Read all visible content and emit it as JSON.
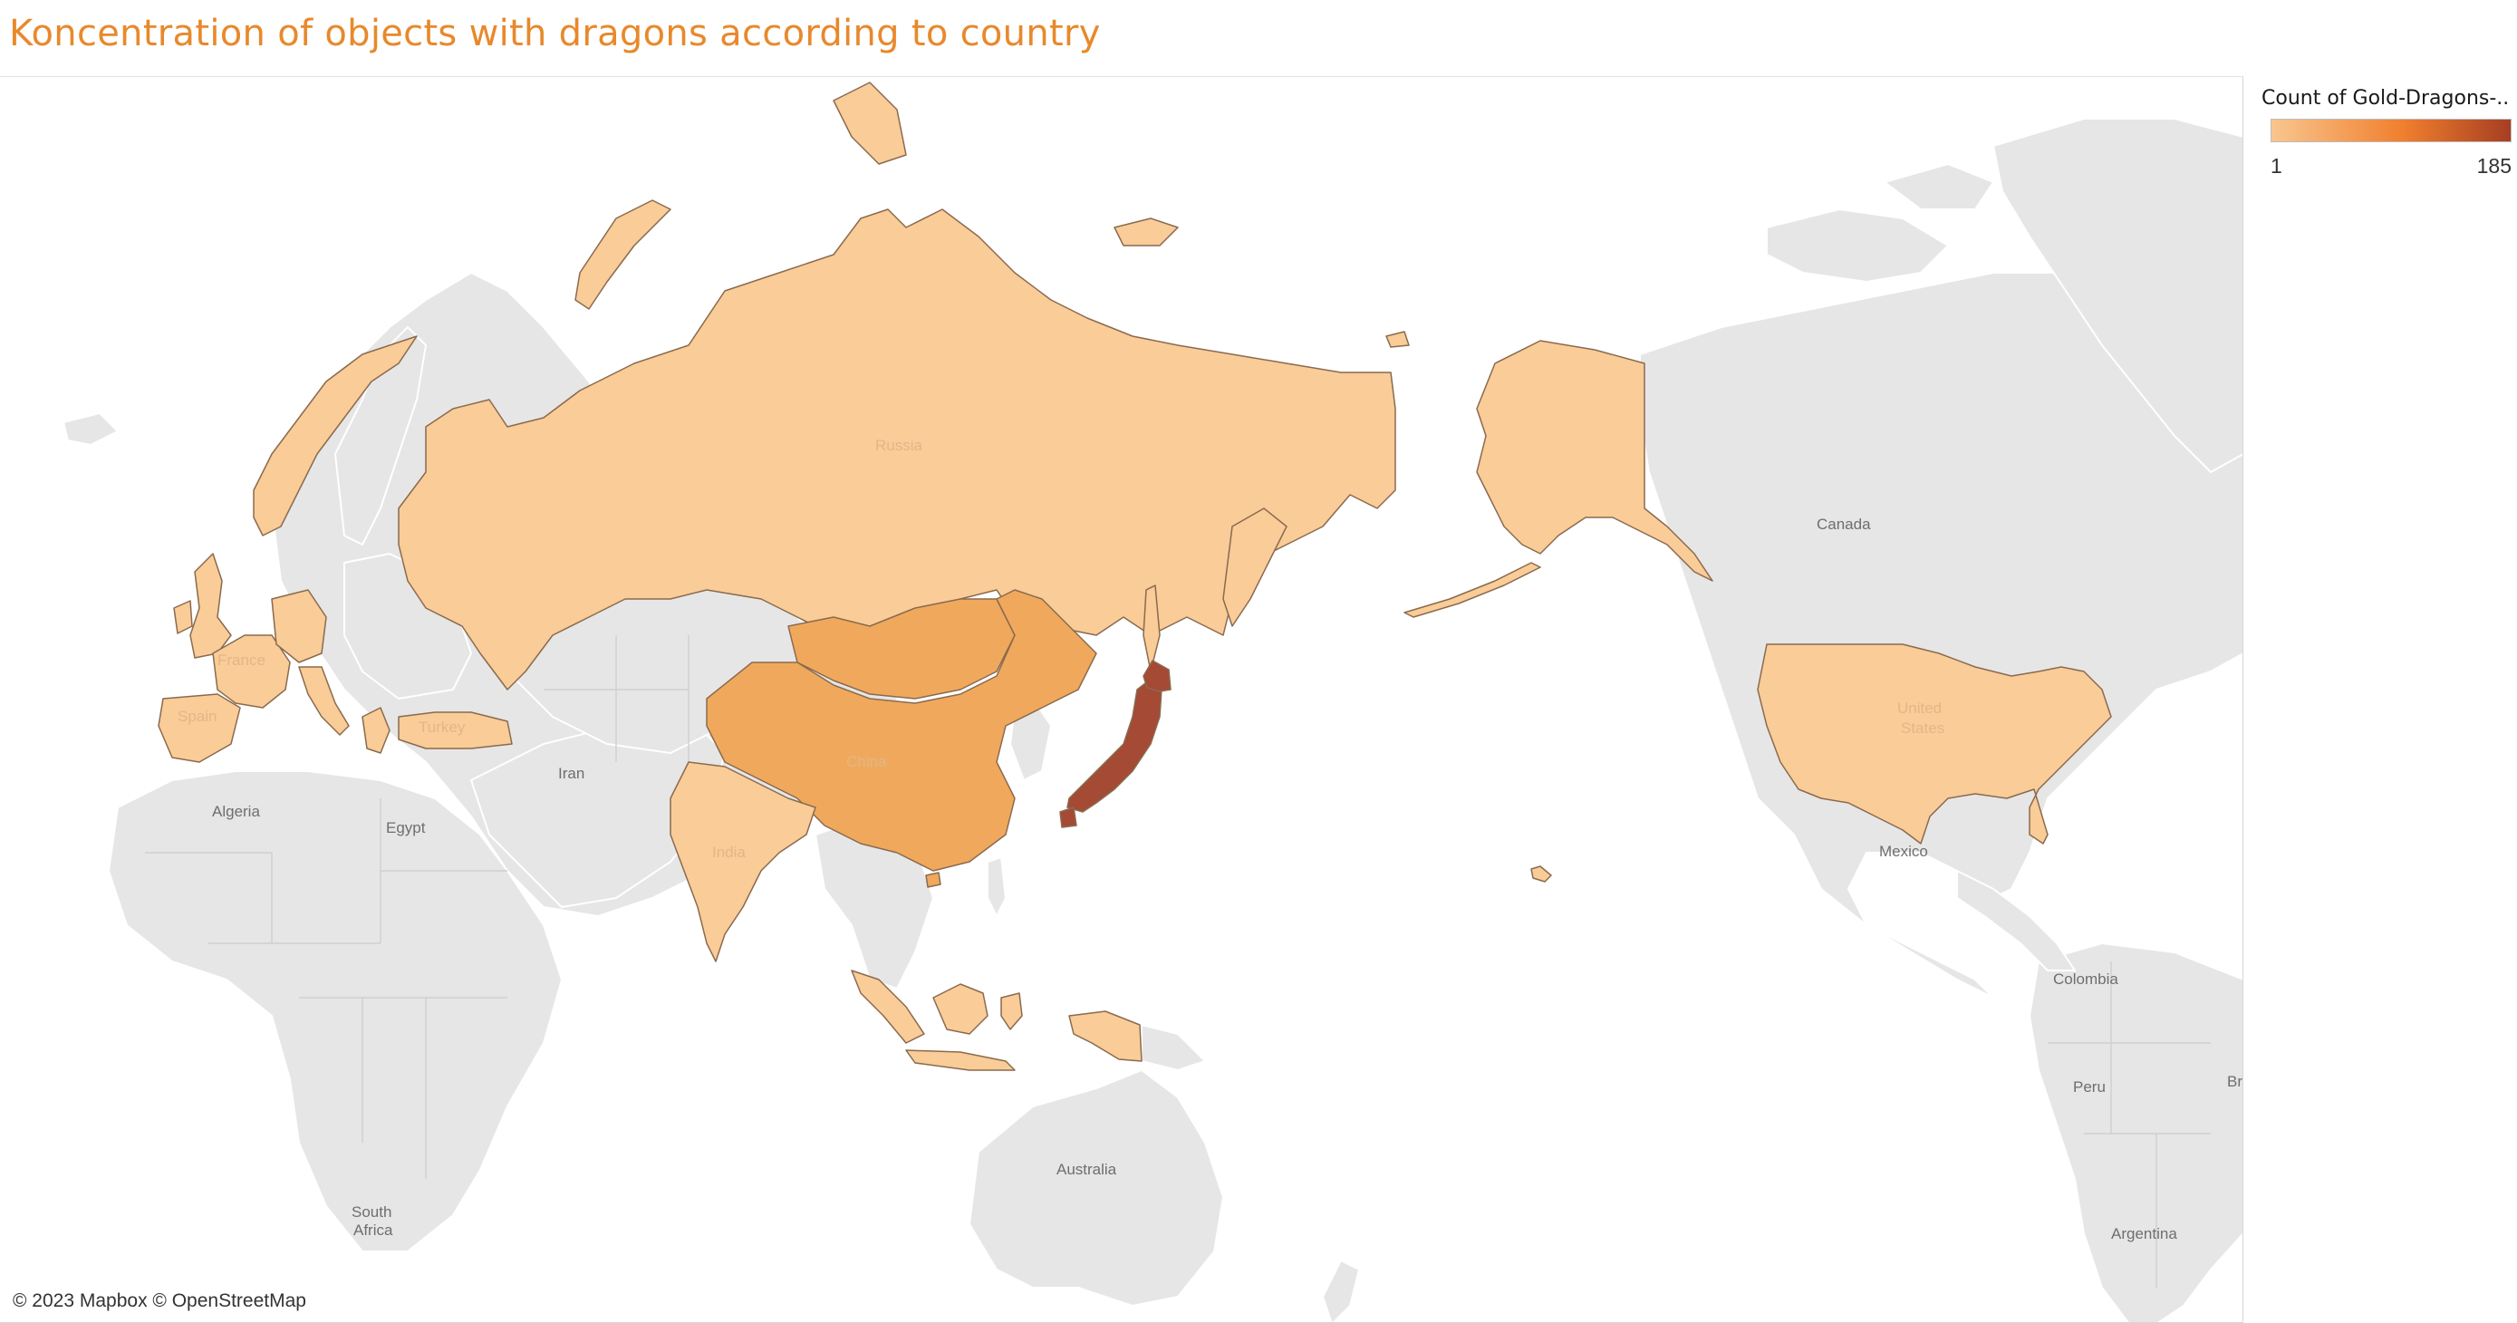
{
  "title": "Koncentration of objects with dragons according to country",
  "legend": {
    "title": "Count of Gold-Dragons-..",
    "min": "1",
    "max": "185",
    "color_low": "#f9c68f",
    "color_mid": "#f07f2e",
    "color_high": "#a63e22"
  },
  "attribution": "© 2023 Mapbox © OpenStreetMap",
  "colors": {
    "base_land": "#e6e6e6",
    "ocean": "#ffffff",
    "low": "#f9cc98",
    "medium": "#f0a95c",
    "high": "#a44a35",
    "country_border": "#8a6a4e",
    "title": "#e8892c"
  },
  "map": {
    "highlighted_countries": [
      {
        "name": "Japan",
        "level": "high"
      },
      {
        "name": "China",
        "level": "medium"
      },
      {
        "name": "Mongolia",
        "level": "medium"
      },
      {
        "name": "Russia",
        "level": "low"
      },
      {
        "name": "United States",
        "level": "low"
      },
      {
        "name": "India",
        "level": "low"
      },
      {
        "name": "Indonesia",
        "level": "low"
      },
      {
        "name": "Turkey",
        "level": "low"
      },
      {
        "name": "France",
        "level": "low"
      },
      {
        "name": "Spain",
        "level": "low"
      },
      {
        "name": "Germany",
        "level": "low"
      },
      {
        "name": "Italy",
        "level": "low"
      },
      {
        "name": "United Kingdom",
        "level": "low"
      },
      {
        "name": "Norway",
        "level": "low"
      },
      {
        "name": "Greece",
        "level": "low"
      }
    ],
    "labels": {
      "canada": "Canada",
      "russia": "Russia",
      "china": "China",
      "india": "India",
      "turkey": "Turkey",
      "france": "France",
      "spain": "Spain",
      "iran": "Iran",
      "algeria": "Algeria",
      "egypt": "Egypt",
      "mexico": "Mexico",
      "colombia": "Colombia",
      "peru": "Peru",
      "brazil_partial": "Br",
      "argentina": "Argentina",
      "australia": "Australia",
      "south_africa_1": "South",
      "south_africa_2": "Africa",
      "usa_1": "United",
      "usa_2": "States"
    }
  }
}
